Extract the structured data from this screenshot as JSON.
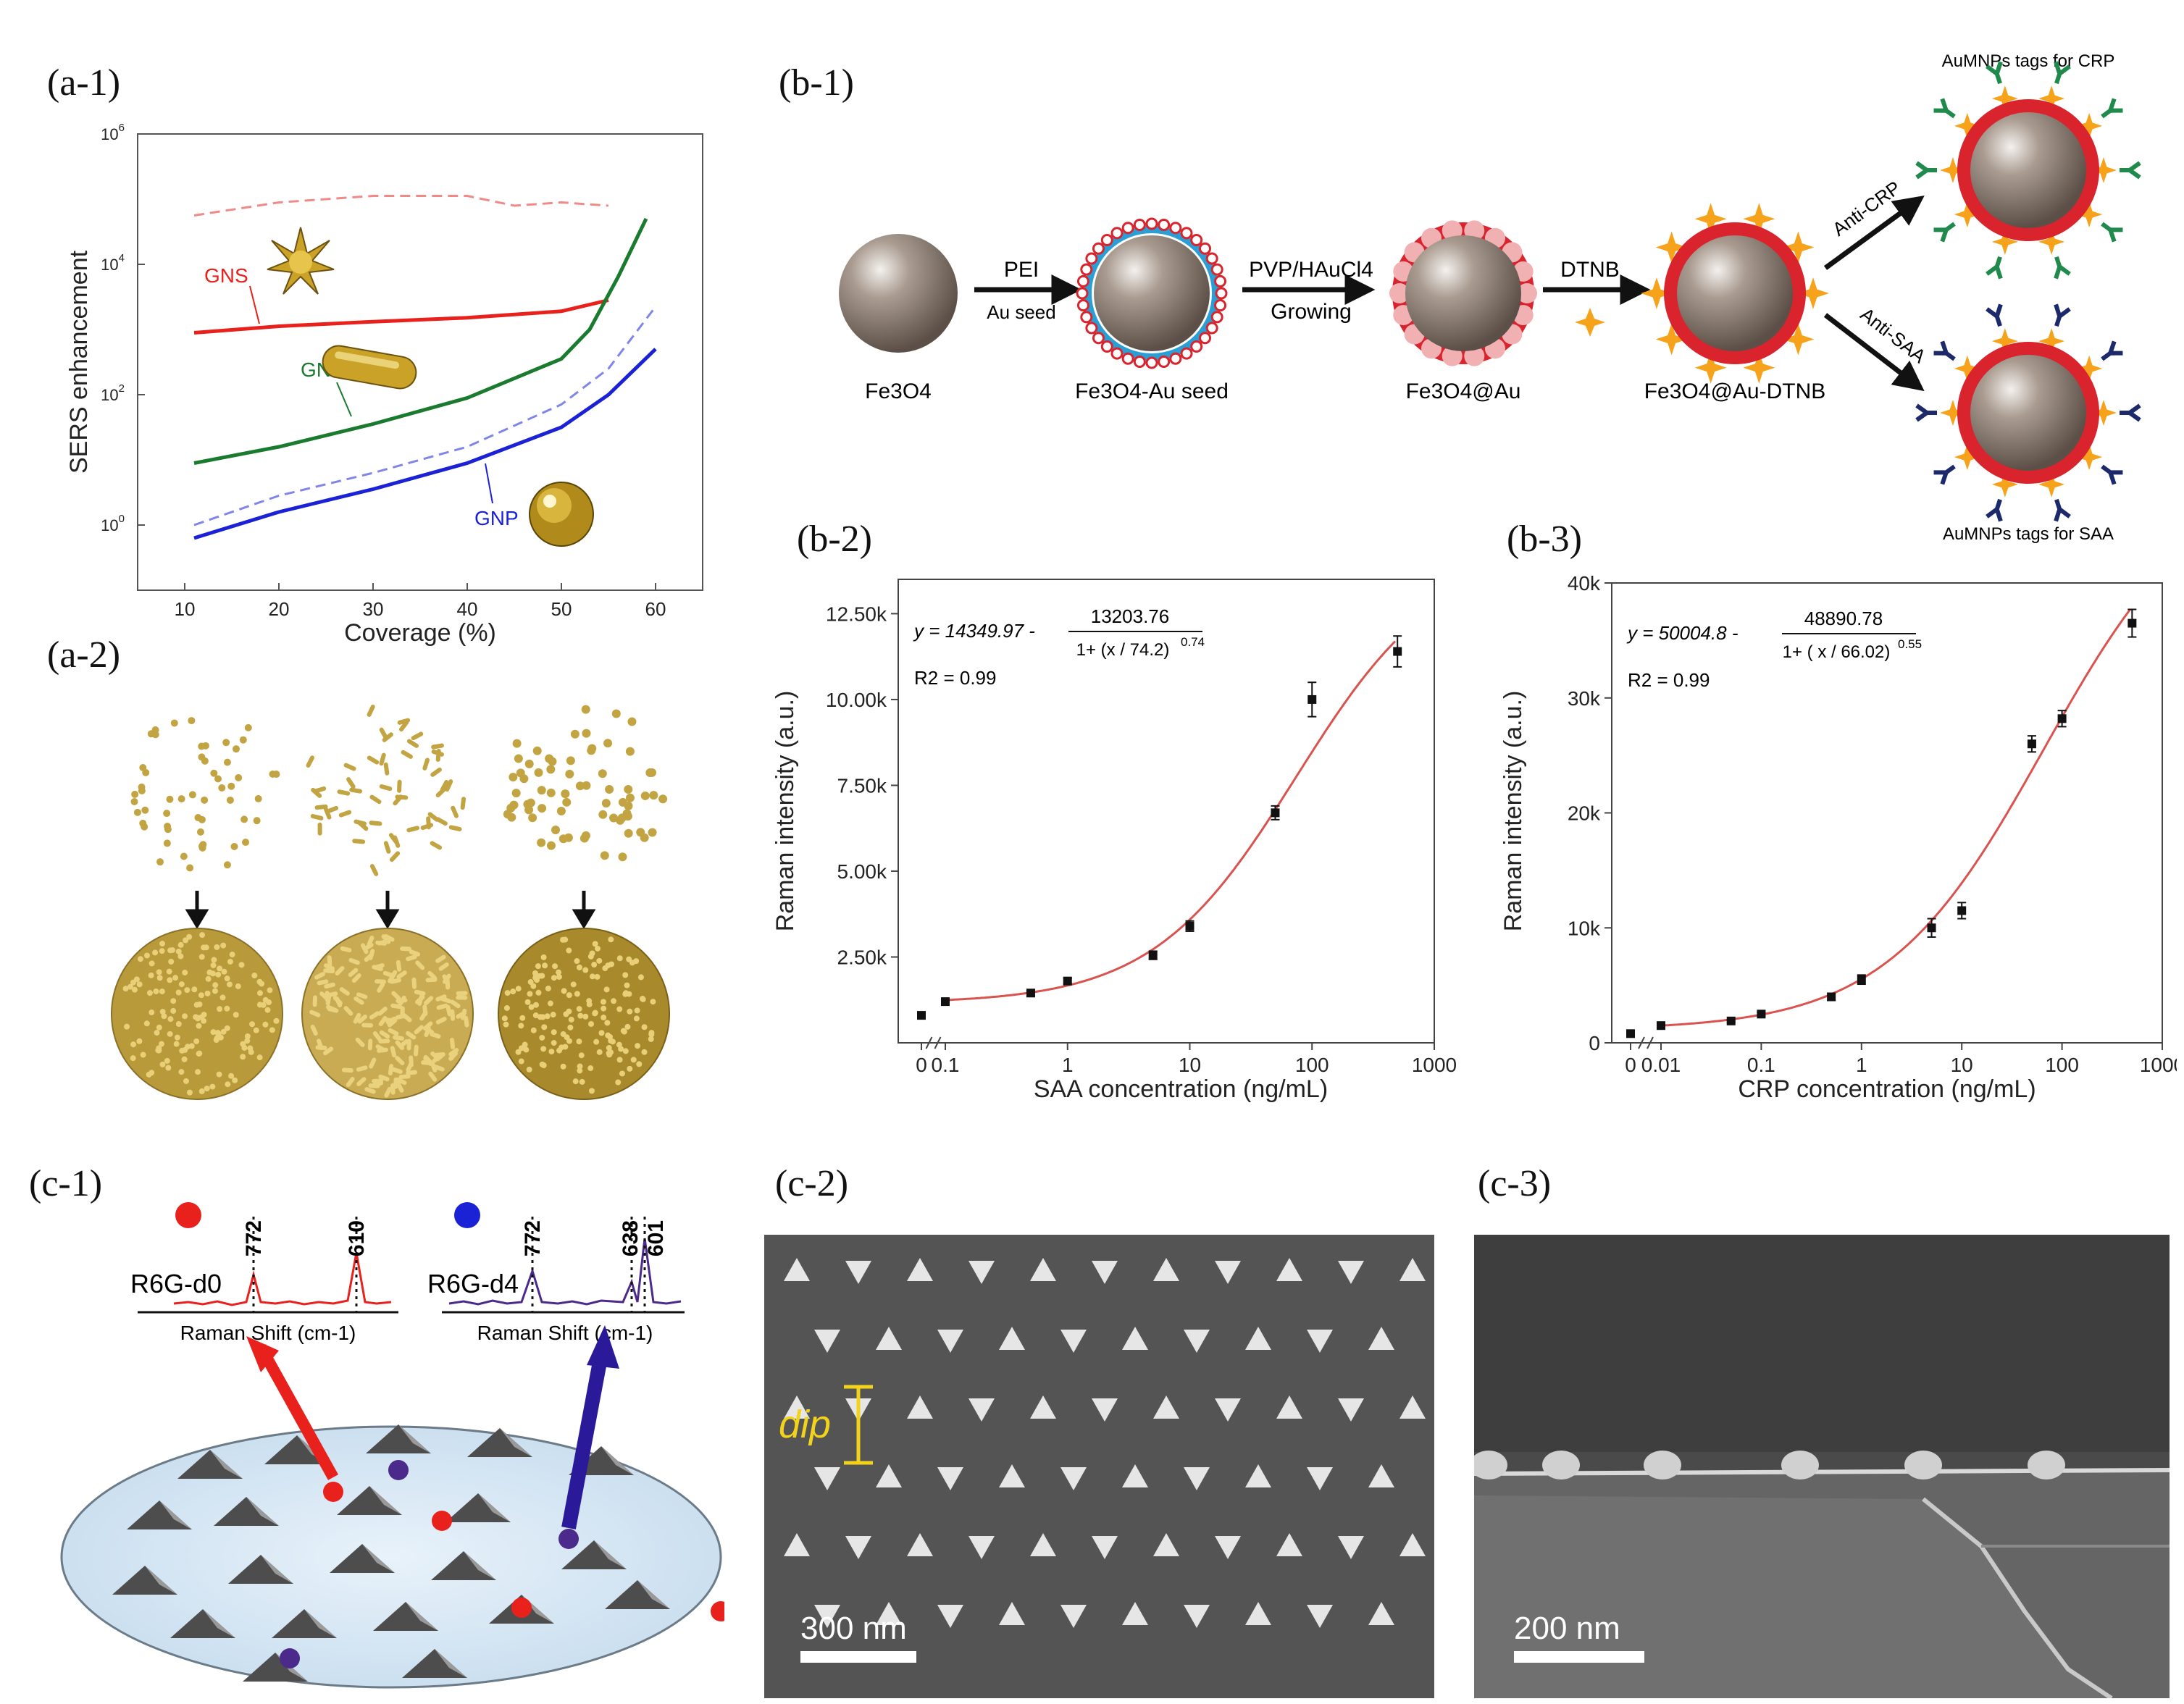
{
  "labels": {
    "a1": "(a-1)",
    "a2": "(a-2)",
    "b1": "(b-1)",
    "b2": "(b-2)",
    "b3": "(b-3)",
    "c1": "(c-1)",
    "c2": "(c-2)",
    "c3": "(c-3)"
  },
  "colors": {
    "gns": "#e8211c",
    "gnr": "#1a7a2e",
    "gnp": "#1b22d6",
    "fit": "#d9534f",
    "gold": "#c9a227",
    "particle": "#9a8e84",
    "shell": "#d9232d",
    "seed_ring": "#2a9fd6",
    "dtnb": "#f6a31b",
    "antibody_crp": "#1f8a4c",
    "antibody_saa": "#1c2a6b",
    "r6g_d0": "#e8211c",
    "r6g_d4": "#4b2a8c"
  },
  "chart_data": [
    {
      "id": "a-1",
      "type": "line",
      "title": "",
      "xlabel": "Coverage (%)",
      "ylabel": "SERS enhancement",
      "xlim": [
        5,
        65
      ],
      "ylim_log10": [
        -1,
        6
      ],
      "x_ticks": [
        "10",
        "20",
        "30",
        "40",
        "50",
        "60"
      ],
      "y_ticks": [
        "10^0",
        "10^2",
        "10^4",
        "10^6"
      ],
      "series": [
        {
          "name": "GNS",
          "style": "solid",
          "x": [
            11,
            20,
            30,
            40,
            50,
            55
          ],
          "log10_y": [
            2.95,
            3.05,
            3.12,
            3.18,
            3.28,
            3.45
          ]
        },
        {
          "name": "GNS (dashed)",
          "style": "dashed",
          "x": [
            11,
            20,
            30,
            40,
            45,
            50,
            55
          ],
          "log10_y": [
            4.75,
            4.95,
            5.05,
            5.05,
            4.9,
            4.95,
            4.9
          ]
        },
        {
          "name": "GNR",
          "style": "solid",
          "x": [
            11,
            20,
            30,
            40,
            50,
            53,
            56,
            58,
            59
          ],
          "log10_y": [
            0.95,
            1.2,
            1.55,
            1.95,
            2.55,
            3.0,
            3.8,
            4.4,
            4.7
          ]
        },
        {
          "name": "GNP (dashed)",
          "style": "dashed",
          "x": [
            11,
            20,
            30,
            40,
            50,
            55,
            60
          ],
          "log10_y": [
            0,
            0.45,
            0.8,
            1.2,
            1.85,
            2.4,
            3.35
          ]
        },
        {
          "name": "GNP",
          "style": "solid",
          "x": [
            11,
            20,
            30,
            40,
            50,
            55,
            60
          ],
          "log10_y": [
            -0.2,
            0.2,
            0.55,
            0.95,
            1.5,
            2.0,
            2.7
          ]
        }
      ],
      "annotations": [
        "GNS",
        "GNR",
        "GNP"
      ]
    },
    {
      "id": "b-2",
      "type": "scatter",
      "xlabel": "SAA concentration (ng/mL)",
      "ylabel": "Raman intensity (a.u.)",
      "x_ticks": [
        "0",
        "0.1",
        "1",
        "10",
        "100",
        "1000"
      ],
      "y_ticks": [
        "2.50k",
        "5.00k",
        "7.50k",
        "10.00k",
        "12.50k"
      ],
      "ylim": [
        0,
        13500
      ],
      "x_scale": "log",
      "points": [
        {
          "x": 0,
          "y": 800,
          "err": 0
        },
        {
          "x": 0.1,
          "y": 1200,
          "err": 60
        },
        {
          "x": 0.5,
          "y": 1450,
          "err": 80
        },
        {
          "x": 1,
          "y": 1800,
          "err": 80
        },
        {
          "x": 5,
          "y": 2550,
          "err": 120
        },
        {
          "x": 10,
          "y": 3400,
          "err": 150
        },
        {
          "x": 50,
          "y": 6700,
          "err": 200
        },
        {
          "x": 100,
          "y": 10000,
          "err": 500
        },
        {
          "x": 500,
          "y": 11400,
          "err": 450
        }
      ],
      "fit": {
        "A": 14349.97,
        "B": 13203.76,
        "x0": 74.2,
        "p": 0.74
      },
      "equation_prefix": "y = 14349.97 -",
      "equation_numerator": "13203.76",
      "equation_denominator": "1+ (x / 74.2)",
      "equation_exponent": "0.74",
      "r2": "R2 = 0.99"
    },
    {
      "id": "b-3",
      "type": "scatter",
      "xlabel": "CRP concentration (ng/mL)",
      "ylabel": "Raman intensity (a.u.)",
      "x_ticks": [
        "0",
        "0.01",
        "0.1",
        "1",
        "10",
        "100",
        "1000"
      ],
      "y_ticks": [
        "0",
        "10k",
        "20k",
        "30k",
        "40k"
      ],
      "ylim": [
        0,
        40000
      ],
      "x_scale": "log",
      "points": [
        {
          "x": 0,
          "y": 800,
          "err": 0
        },
        {
          "x": 0.01,
          "y": 1500,
          "err": 100
        },
        {
          "x": 0.05,
          "y": 1900,
          "err": 100
        },
        {
          "x": 0.1,
          "y": 2500,
          "err": 150
        },
        {
          "x": 0.5,
          "y": 4000,
          "err": 300
        },
        {
          "x": 1,
          "y": 5500,
          "err": 400
        },
        {
          "x": 5,
          "y": 10000,
          "err": 800
        },
        {
          "x": 10,
          "y": 11500,
          "err": 700
        },
        {
          "x": 50,
          "y": 26000,
          "err": 700
        },
        {
          "x": 100,
          "y": 28200,
          "err": 700
        },
        {
          "x": 500,
          "y": 36500,
          "err": 1200
        }
      ],
      "fit": {
        "A": 50004.8,
        "B": 48890.78,
        "x0": 66.02,
        "p": 0.55
      },
      "equation_prefix": "y = 50004.8 -",
      "equation_numerator": "48890.78",
      "equation_denominator": "1+ ( x / 66.02)",
      "equation_exponent": "0.55",
      "r2": "R2 = 0.99"
    }
  ],
  "schematic_b1": {
    "steps": [
      "Fe3O4",
      "Fe3O4-Au seed",
      "Fe3O4@Au",
      "Fe3O4@Au-DTNB"
    ],
    "arrow1_top": "PEI",
    "arrow1_bottom": "Au seed",
    "arrow2_top": "PVP/HAuCl4",
    "arrow2_bottom": "Growing",
    "arrow3_top": "DTNB",
    "branch_top": "Anti-CRP",
    "branch_bottom": "Anti-SAA",
    "tag_crp": "AuMNPs tags for CRP",
    "tag_saa": "AuMNPs tags for SAA"
  },
  "schematic_c1": {
    "spectrum_left_label": "R6G-d0",
    "spectrum_right_label": "R6G-d4",
    "left_peaks": [
      "772",
      "610"
    ],
    "right_peaks": [
      "772",
      "638",
      "601"
    ],
    "axis_label": "Raman Shift (cm-1)"
  },
  "sem": {
    "c2_scale": "300 nm",
    "c2_dim": "dip",
    "c3_scale": "200 nm"
  }
}
